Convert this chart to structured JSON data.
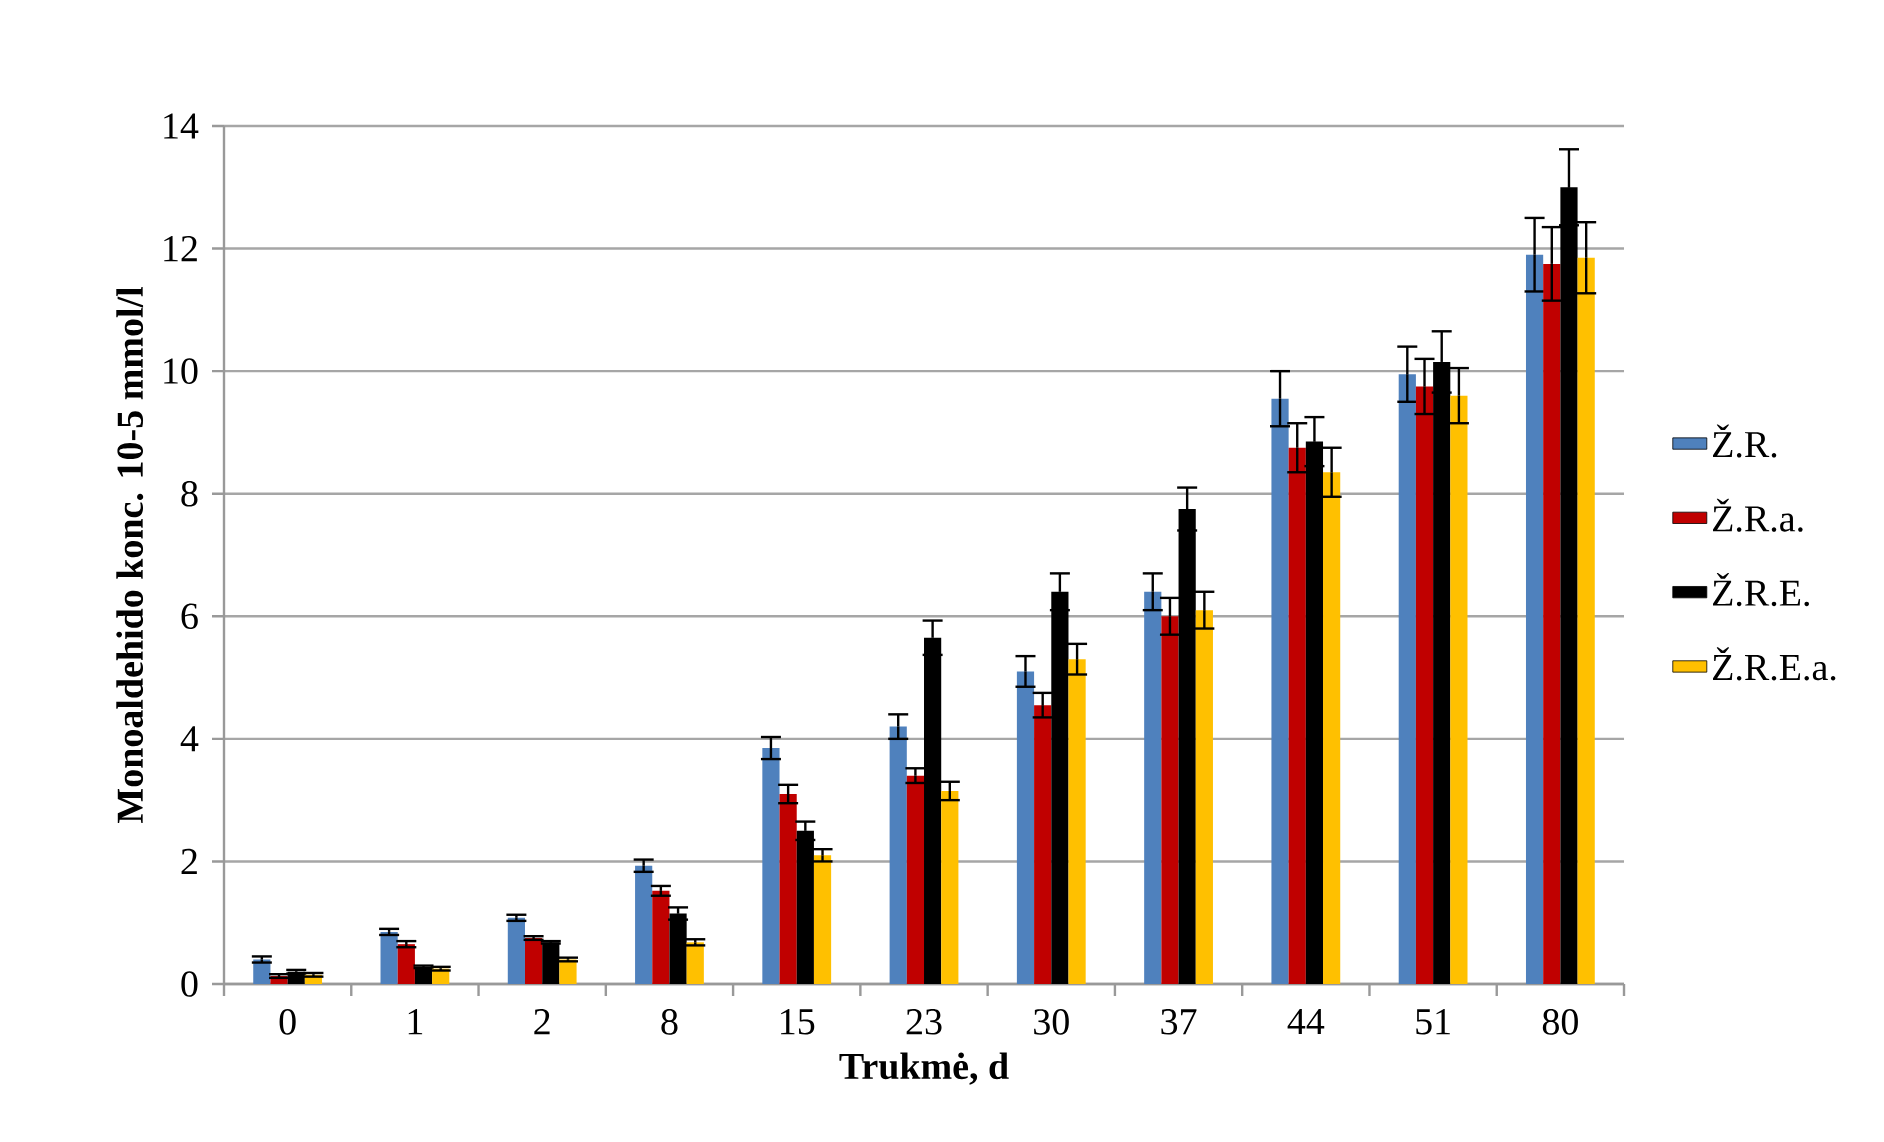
{
  "chart_data": {
    "type": "bar",
    "xlabel": "Trukmė, d",
    "ylabel": "Monoaldehido konc. 10-5 mmol/l",
    "categories": [
      "0",
      "1",
      "2",
      "8",
      "15",
      "23",
      "30",
      "37",
      "44",
      "51",
      "80"
    ],
    "series": [
      {
        "name": "Ž.R.",
        "color": "#4f81bd",
        "values": [
          0.4,
          0.85,
          1.08,
          1.93,
          3.85,
          4.2,
          5.1,
          6.4,
          9.55,
          9.95,
          11.9
        ],
        "errors": [
          0.05,
          0.05,
          0.05,
          0.1,
          0.18,
          0.2,
          0.25,
          0.3,
          0.45,
          0.45,
          0.6
        ]
      },
      {
        "name": "Ž.R.a.",
        "color": "#c00000",
        "values": [
          0.13,
          0.65,
          0.75,
          1.52,
          3.1,
          3.4,
          4.55,
          6.0,
          8.75,
          9.75,
          11.75
        ],
        "errors": [
          0.03,
          0.05,
          0.03,
          0.08,
          0.15,
          0.12,
          0.2,
          0.3,
          0.4,
          0.45,
          0.6
        ]
      },
      {
        "name": "Ž.R.E.",
        "color": "#000000",
        "values": [
          0.2,
          0.28,
          0.68,
          1.15,
          2.5,
          5.65,
          6.4,
          7.75,
          8.85,
          10.15,
          13.0
        ],
        "errors": [
          0.03,
          0.02,
          0.02,
          0.1,
          0.15,
          0.28,
          0.3,
          0.35,
          0.4,
          0.5,
          0.62
        ]
      },
      {
        "name": "Ž.R.E.a.",
        "color": "#ffc000",
        "values": [
          0.15,
          0.25,
          0.4,
          0.68,
          2.1,
          3.15,
          5.3,
          6.1,
          8.35,
          9.6,
          11.85
        ],
        "errors": [
          0.03,
          0.03,
          0.03,
          0.05,
          0.1,
          0.15,
          0.25,
          0.3,
          0.4,
          0.45,
          0.58
        ]
      }
    ],
    "ylim": [
      0,
      14
    ],
    "yticks": [
      0,
      2,
      4,
      6,
      8,
      10,
      12,
      14
    ],
    "grid": "y",
    "legend": "right"
  }
}
